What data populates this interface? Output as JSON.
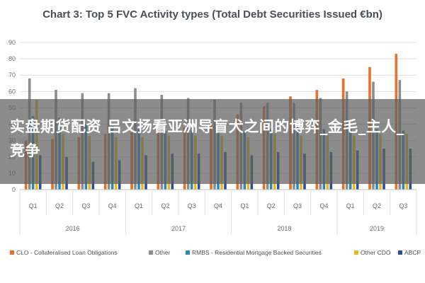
{
  "overlay_text": "实盘期货配资 吕文扬看亚洲导盲犬之间的博弈_金毛_主人_竞争",
  "chart_data": {
    "type": "bar",
    "title": "Chart 3: Top 5 FVC Activity types (Total Debt Securities Issued €bn)",
    "categories": [
      "Q1",
      "Q2",
      "Q3",
      "Q4",
      "Q1",
      "Q2",
      "Q3",
      "Q4",
      "Q1",
      "Q2",
      "Q3",
      "Q4",
      "Q1",
      "Q2",
      "Q3"
    ],
    "year_groups": [
      {
        "label": "2016",
        "count": 4
      },
      {
        "label": "2017",
        "count": 4
      },
      {
        "label": "2018",
        "count": 4
      },
      {
        "label": "2019",
        "count": 3
      }
    ],
    "ylim": [
      0,
      90
    ],
    "yticks": [
      0,
      10,
      20,
      30,
      40,
      50,
      60,
      70,
      80,
      90
    ],
    "grid": true,
    "legend_position": "bottom",
    "series": [
      {
        "name": "CLO - Collateralised Loan Obligations",
        "color": "#e8712a",
        "values": [
          30,
          31,
          32,
          34,
          35,
          36,
          38,
          41,
          46,
          51,
          57,
          61,
          68,
          75,
          83
        ]
      },
      {
        "name": "Other",
        "color": "#8c8c8c",
        "values": [
          68,
          61,
          59,
          59,
          62,
          58,
          56,
          55,
          53,
          53,
          53,
          56,
          60,
          66,
          67
        ]
      },
      {
        "name": "RMBS - Residential Mortgage Backed Securities",
        "color": "#2e86b8",
        "values": [
          45,
          44,
          40,
          39,
          37,
          36,
          36,
          36,
          36,
          37,
          38,
          37,
          38,
          37,
          36
        ]
      },
      {
        "name": "Other CDO",
        "color": "#e8b820",
        "values": [
          55,
          34,
          33,
          32,
          32,
          33,
          33,
          33,
          32,
          34,
          33,
          33,
          33,
          34,
          34
        ]
      },
      {
        "name": "ABCP",
        "color": "#2a4f96",
        "values": [
          21,
          20,
          17,
          18,
          21,
          22,
          22,
          23,
          21,
          23,
          22,
          23,
          24,
          25,
          25
        ]
      }
    ]
  }
}
